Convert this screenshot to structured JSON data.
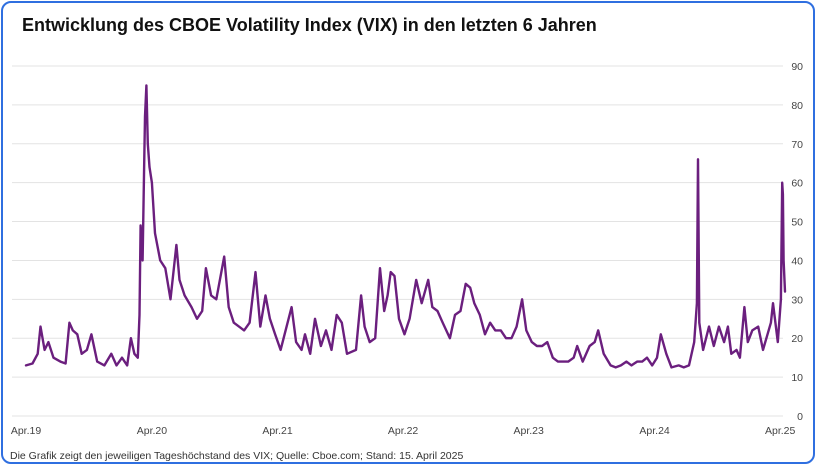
{
  "title": "Entwicklung des CBOE Volatility Index (VIX) in den letzten 6 Jahren",
  "footnote": "Die Grafik zeigt den jeweiligen Tageshöchstand des VIX; Quelle: Cboe.com; Stand: 15. April 2025",
  "colors": {
    "line": "#6b1f7e",
    "grid": "#e3e3e3",
    "frame": "#2f6fe0"
  },
  "chart_data": {
    "type": "line",
    "title": "Entwicklung des CBOE Volatility Index (VIX) in den letzten 6 Jahren",
    "xlabel": "",
    "ylabel": "",
    "x_range": [
      "2019-04-01",
      "2025-04-15"
    ],
    "ylim": [
      0,
      90
    ],
    "y_ticks": [
      0,
      10,
      20,
      30,
      40,
      50,
      60,
      70,
      80,
      90
    ],
    "x_ticks": [
      {
        "date": "2019-04-01",
        "label": "Apr.19"
      },
      {
        "date": "2020-04-01",
        "label": "Apr.20"
      },
      {
        "date": "2021-04-01",
        "label": "Apr.21"
      },
      {
        "date": "2022-04-01",
        "label": "Apr.22"
      },
      {
        "date": "2023-04-01",
        "label": "Apr.23"
      },
      {
        "date": "2024-04-01",
        "label": "Apr.24"
      },
      {
        "date": "2025-04-01",
        "label": "Apr.25"
      }
    ],
    "grid": true,
    "y_axis_position": "right",
    "series": [
      {
        "name": "",
        "points": [
          [
            "2019-04-01",
            13
          ],
          [
            "2019-04-20",
            13.5
          ],
          [
            "2019-05-05",
            16
          ],
          [
            "2019-05-13",
            23
          ],
          [
            "2019-05-25",
            17
          ],
          [
            "2019-06-05",
            19
          ],
          [
            "2019-06-20",
            15
          ],
          [
            "2019-07-10",
            14
          ],
          [
            "2019-07-25",
            13.5
          ],
          [
            "2019-08-05",
            24
          ],
          [
            "2019-08-15",
            22
          ],
          [
            "2019-08-28",
            21
          ],
          [
            "2019-09-10",
            16
          ],
          [
            "2019-09-25",
            17
          ],
          [
            "2019-10-08",
            21
          ],
          [
            "2019-10-25",
            14
          ],
          [
            "2019-11-15",
            13
          ],
          [
            "2019-12-05",
            16
          ],
          [
            "2019-12-20",
            13
          ],
          [
            "2020-01-05",
            15
          ],
          [
            "2020-01-20",
            13
          ],
          [
            "2020-01-31",
            20
          ],
          [
            "2020-02-10",
            16
          ],
          [
            "2020-02-20",
            15
          ],
          [
            "2020-02-25",
            26
          ],
          [
            "2020-02-28",
            49
          ],
          [
            "2020-03-05",
            40
          ],
          [
            "2020-03-09",
            62
          ],
          [
            "2020-03-12",
            77
          ],
          [
            "2020-03-16",
            85
          ],
          [
            "2020-03-20",
            70
          ],
          [
            "2020-03-25",
            64
          ],
          [
            "2020-04-01",
            60
          ],
          [
            "2020-04-10",
            47
          ],
          [
            "2020-04-25",
            40
          ],
          [
            "2020-05-10",
            38
          ],
          [
            "2020-05-25",
            30
          ],
          [
            "2020-06-11",
            44
          ],
          [
            "2020-06-20",
            35
          ],
          [
            "2020-07-05",
            31
          ],
          [
            "2020-07-25",
            28
          ],
          [
            "2020-08-10",
            25
          ],
          [
            "2020-08-25",
            27
          ],
          [
            "2020-09-05",
            38
          ],
          [
            "2020-09-20",
            31
          ],
          [
            "2020-10-05",
            30
          ],
          [
            "2020-10-28",
            41
          ],
          [
            "2020-11-10",
            28
          ],
          [
            "2020-11-25",
            24
          ],
          [
            "2020-12-10",
            23
          ],
          [
            "2020-12-25",
            22
          ],
          [
            "2021-01-10",
            24
          ],
          [
            "2021-01-27",
            37
          ],
          [
            "2021-02-10",
            23
          ],
          [
            "2021-02-25",
            31
          ],
          [
            "2021-03-10",
            25
          ],
          [
            "2021-03-25",
            21
          ],
          [
            "2021-04-10",
            17
          ],
          [
            "2021-05-12",
            28
          ],
          [
            "2021-05-25",
            19
          ],
          [
            "2021-06-10",
            17
          ],
          [
            "2021-06-20",
            21
          ],
          [
            "2021-07-05",
            16
          ],
          [
            "2021-07-19",
            25
          ],
          [
            "2021-08-05",
            18
          ],
          [
            "2021-08-20",
            22
          ],
          [
            "2021-09-05",
            17
          ],
          [
            "2021-09-20",
            26
          ],
          [
            "2021-10-05",
            24
          ],
          [
            "2021-10-20",
            16
          ],
          [
            "2021-11-15",
            17
          ],
          [
            "2021-11-30",
            31
          ],
          [
            "2021-12-10",
            23
          ],
          [
            "2021-12-25",
            19
          ],
          [
            "2022-01-10",
            20
          ],
          [
            "2022-01-24",
            38
          ],
          [
            "2022-02-05",
            27
          ],
          [
            "2022-02-15",
            31
          ],
          [
            "2022-02-24",
            37
          ],
          [
            "2022-03-07",
            36
          ],
          [
            "2022-03-20",
            25
          ],
          [
            "2022-04-05",
            21
          ],
          [
            "2022-04-20",
            25
          ],
          [
            "2022-05-09",
            35
          ],
          [
            "2022-05-25",
            29
          ],
          [
            "2022-06-13",
            35
          ],
          [
            "2022-06-25",
            28
          ],
          [
            "2022-07-10",
            27
          ],
          [
            "2022-07-25",
            24
          ],
          [
            "2022-08-15",
            20
          ],
          [
            "2022-08-30",
            26
          ],
          [
            "2022-09-15",
            27
          ],
          [
            "2022-09-30",
            34
          ],
          [
            "2022-10-13",
            33
          ],
          [
            "2022-10-25",
            29
          ],
          [
            "2022-11-10",
            26
          ],
          [
            "2022-11-25",
            21
          ],
          [
            "2022-12-10",
            24
          ],
          [
            "2022-12-25",
            22
          ],
          [
            "2023-01-10",
            22
          ],
          [
            "2023-01-25",
            20
          ],
          [
            "2023-02-10",
            20
          ],
          [
            "2023-02-25",
            23
          ],
          [
            "2023-03-13",
            30
          ],
          [
            "2023-03-25",
            22
          ],
          [
            "2023-04-10",
            19
          ],
          [
            "2023-04-25",
            18
          ],
          [
            "2023-05-10",
            18
          ],
          [
            "2023-05-25",
            19
          ],
          [
            "2023-06-10",
            15
          ],
          [
            "2023-06-25",
            14
          ],
          [
            "2023-07-10",
            14
          ],
          [
            "2023-07-25",
            14
          ],
          [
            "2023-08-10",
            15
          ],
          [
            "2023-08-20",
            18
          ],
          [
            "2023-09-05",
            14
          ],
          [
            "2023-09-25",
            18
          ],
          [
            "2023-10-10",
            19
          ],
          [
            "2023-10-20",
            22
          ],
          [
            "2023-11-05",
            16
          ],
          [
            "2023-11-25",
            13
          ],
          [
            "2023-12-10",
            12.5
          ],
          [
            "2023-12-25",
            13
          ],
          [
            "2024-01-10",
            14
          ],
          [
            "2024-01-25",
            13
          ],
          [
            "2024-02-10",
            14
          ],
          [
            "2024-02-25",
            14
          ],
          [
            "2024-03-10",
            15
          ],
          [
            "2024-03-25",
            13
          ],
          [
            "2024-04-08",
            15
          ],
          [
            "2024-04-19",
            21
          ],
          [
            "2024-05-05",
            16
          ],
          [
            "2024-05-20",
            12.5
          ],
          [
            "2024-06-10",
            13
          ],
          [
            "2024-06-25",
            12.5
          ],
          [
            "2024-07-10",
            13
          ],
          [
            "2024-07-25",
            19
          ],
          [
            "2024-08-02",
            29
          ],
          [
            "2024-08-05",
            66
          ],
          [
            "2024-08-09",
            24
          ],
          [
            "2024-08-20",
            17
          ],
          [
            "2024-09-06",
            23
          ],
          [
            "2024-09-20",
            18
          ],
          [
            "2024-10-05",
            23
          ],
          [
            "2024-10-20",
            19
          ],
          [
            "2024-10-31",
            23
          ],
          [
            "2024-11-10",
            16
          ],
          [
            "2024-11-25",
            17
          ],
          [
            "2024-12-05",
            15
          ],
          [
            "2024-12-18",
            28
          ],
          [
            "2024-12-28",
            19
          ],
          [
            "2025-01-10",
            22
          ],
          [
            "2025-01-27",
            23
          ],
          [
            "2025-02-10",
            17
          ],
          [
            "2025-02-20",
            20
          ],
          [
            "2025-03-05",
            24
          ],
          [
            "2025-03-11",
            29
          ],
          [
            "2025-03-25",
            19
          ],
          [
            "2025-04-03",
            30
          ],
          [
            "2025-04-07",
            60
          ],
          [
            "2025-04-09",
            57
          ],
          [
            "2025-04-11",
            40
          ],
          [
            "2025-04-15",
            32
          ]
        ]
      }
    ]
  }
}
